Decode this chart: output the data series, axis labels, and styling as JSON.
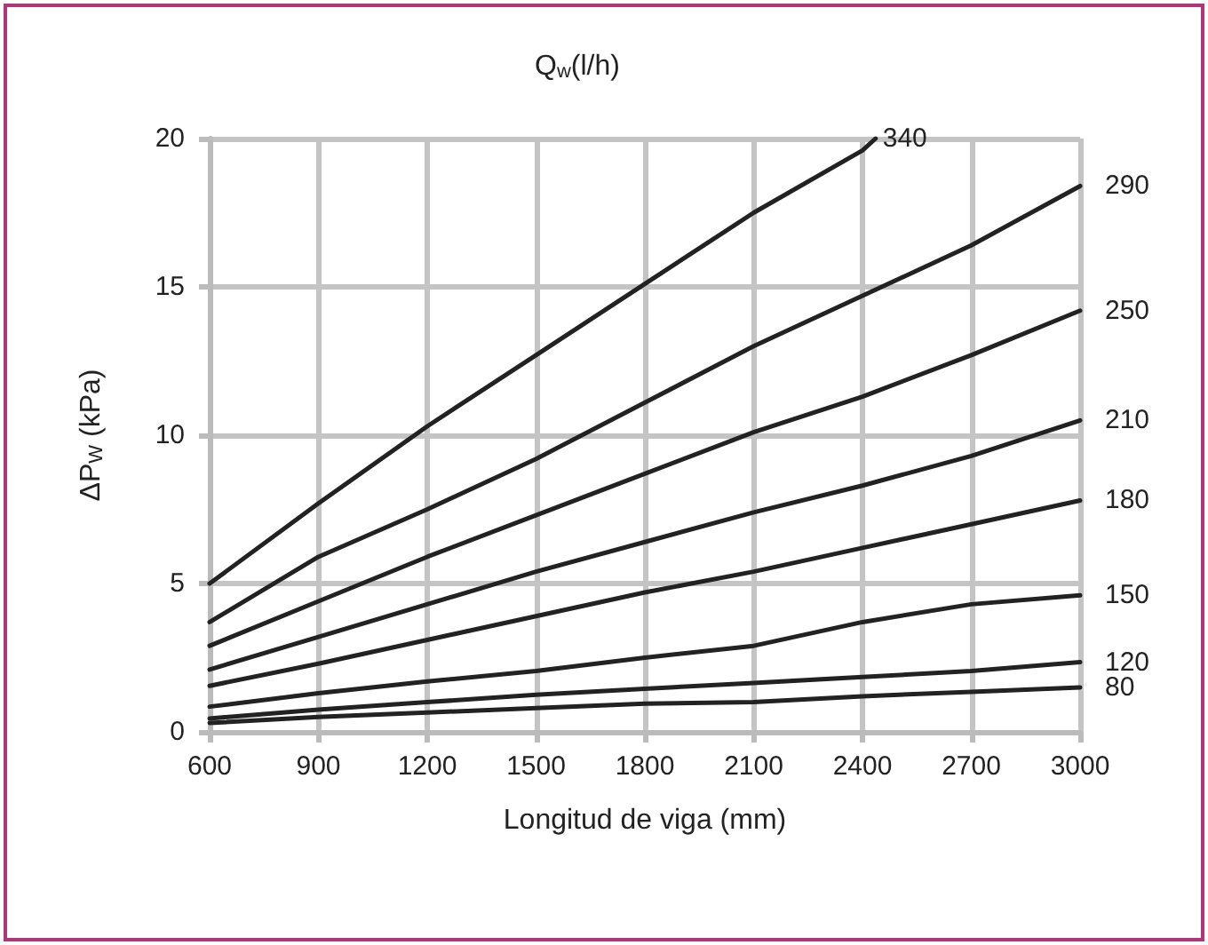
{
  "chart_data": {
    "type": "line",
    "legend_title": "Q$_{w}$(l/h)",
    "xlabel": "Longitud de viga (mm)",
    "ylabel": "ΔP$_{W}$ (kPa)",
    "x": [
      600,
      900,
      1200,
      1500,
      1800,
      2100,
      2400,
      2700,
      3000
    ],
    "series": [
      {
        "name": "340",
        "color": "#222222",
        "x": [
          600,
          900,
          1200,
          1500,
          1800,
          2100,
          2400,
          2436
        ],
        "values": [
          5.0,
          7.7,
          10.3,
          12.7,
          15.1,
          17.5,
          19.6,
          20
        ]
      },
      {
        "name": "290",
        "color": "#222222",
        "values": [
          3.7,
          5.9,
          7.5,
          9.2,
          11.1,
          13.0,
          14.7,
          16.4,
          18.4
        ]
      },
      {
        "name": "250",
        "color": "#222222",
        "values": [
          2.9,
          4.4,
          5.9,
          7.3,
          8.7,
          10.1,
          11.3,
          12.7,
          14.2
        ]
      },
      {
        "name": "210",
        "color": "#222222",
        "values": [
          2.1,
          3.2,
          4.3,
          5.4,
          6.4,
          7.4,
          8.3,
          9.3,
          10.5
        ]
      },
      {
        "name": "180",
        "color": "#222222",
        "values": [
          1.55,
          2.3,
          3.1,
          3.9,
          4.7,
          5.4,
          6.2,
          7.0,
          7.8
        ]
      },
      {
        "name": "150",
        "color": "#222222",
        "values": [
          0.85,
          1.3,
          1.7,
          2.05,
          2.5,
          2.9,
          3.7,
          4.3,
          4.6
        ]
      },
      {
        "name": "120",
        "color": "#222222",
        "values": [
          0.45,
          0.75,
          1.0,
          1.25,
          1.45,
          1.65,
          1.85,
          2.05,
          2.35
        ]
      },
      {
        "name": "80",
        "color": "#222222",
        "values": [
          0.3,
          0.5,
          0.65,
          0.8,
          0.95,
          1.0,
          1.2,
          1.35,
          1.5
        ]
      }
    ],
    "xlim": [
      600,
      3000
    ],
    "xticks": [
      600,
      900,
      1200,
      1500,
      1800,
      2100,
      2400,
      2700,
      3000
    ],
    "ylim": [
      0,
      20
    ],
    "yticks": [
      0,
      5,
      10,
      15,
      20
    ],
    "grid": true,
    "legend": false,
    "marker": "none",
    "line_style": "solid"
  }
}
